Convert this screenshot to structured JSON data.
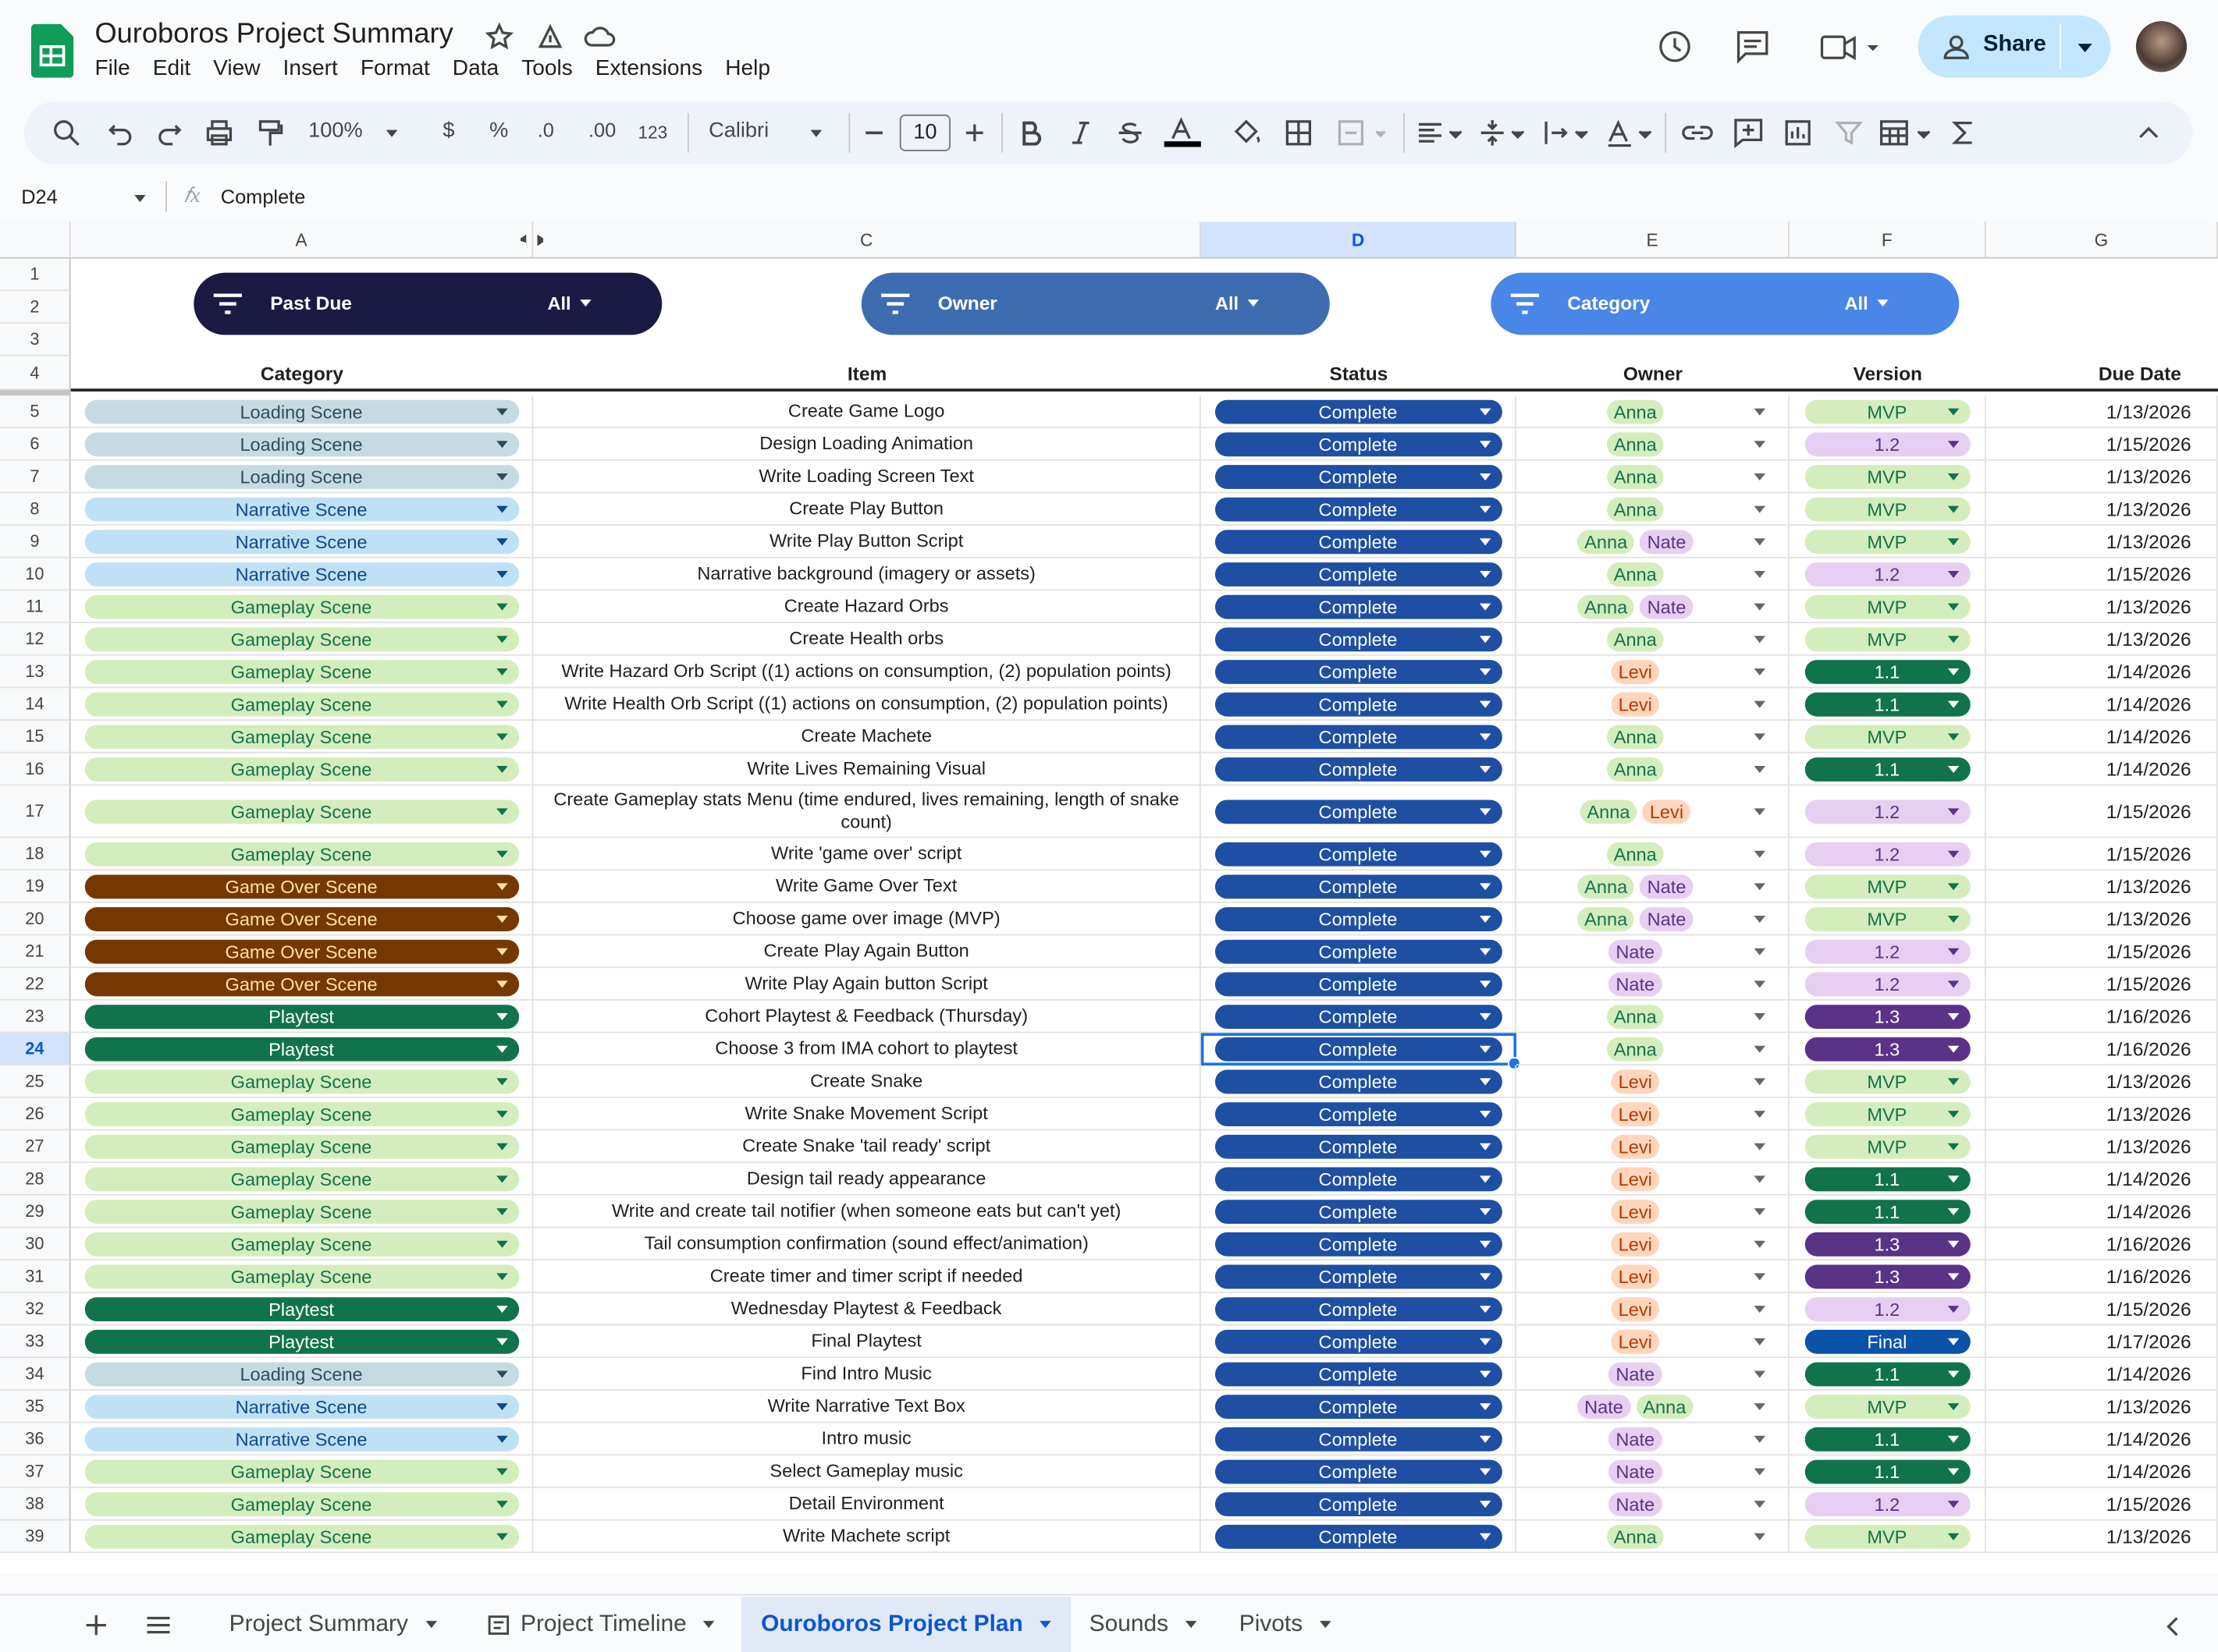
{
  "header": {
    "title": "Ouroboros Project Summary",
    "menu": [
      "File",
      "Edit",
      "View",
      "Insert",
      "Format",
      "Data",
      "Tools",
      "Extensions",
      "Help"
    ],
    "share": "Share"
  },
  "toolbar": {
    "zoom": "100%",
    "currency": "$",
    "percent": "%",
    "decrease_decimals": ".0",
    "increase_decimals": ".00",
    "number_format": "123",
    "font": "Calibri",
    "font_size": "10"
  },
  "formula_bar": {
    "cell": "D24",
    "content": "Complete"
  },
  "sheet": {
    "columns": [
      "A",
      "C",
      "D",
      "E",
      "F",
      "G"
    ],
    "top_rows": [
      1,
      2,
      3,
      4
    ],
    "filters": [
      {
        "label": "Past Due",
        "value": "All",
        "color": "#1b1a45"
      },
      {
        "label": "Owner",
        "value": "All",
        "color": "#3d6cb0"
      },
      {
        "label": "Category",
        "value": "All",
        "color": "#4a86e8"
      }
    ],
    "table_headers": [
      "Category",
      "Item",
      "Status",
      "Owner",
      "Version",
      "Due Date"
    ],
    "rows": [
      {
        "row": 5,
        "category": "Loading Scene",
        "item": "Create Game Logo",
        "status": "Complete",
        "owners": [
          "Anna"
        ],
        "version": "MVP",
        "due": "1/13/2026"
      },
      {
        "row": 6,
        "category": "Loading Scene",
        "item": "Design Loading Animation",
        "status": "Complete",
        "owners": [
          "Anna"
        ],
        "version": "1.2",
        "due": "1/15/2026"
      },
      {
        "row": 7,
        "category": "Loading Scene",
        "item": "Write Loading Screen Text",
        "status": "Complete",
        "owners": [
          "Anna"
        ],
        "version": "MVP",
        "due": "1/13/2026"
      },
      {
        "row": 8,
        "category": "Narrative Scene",
        "item": "Create Play Button",
        "status": "Complete",
        "owners": [
          "Anna"
        ],
        "version": "MVP",
        "due": "1/13/2026"
      },
      {
        "row": 9,
        "category": "Narrative Scene",
        "item": "Write Play Button Script",
        "status": "Complete",
        "owners": [
          "Anna",
          "Nate"
        ],
        "version": "MVP",
        "due": "1/13/2026"
      },
      {
        "row": 10,
        "category": "Narrative Scene",
        "item": "Narrative background (imagery or assets)",
        "status": "Complete",
        "owners": [
          "Anna"
        ],
        "version": "1.2",
        "due": "1/15/2026"
      },
      {
        "row": 11,
        "category": "Gameplay Scene",
        "item": "Create Hazard Orbs",
        "status": "Complete",
        "owners": [
          "Anna",
          "Nate"
        ],
        "version": "MVP",
        "due": "1/13/2026"
      },
      {
        "row": 12,
        "category": "Gameplay Scene",
        "item": "Create Health orbs",
        "status": "Complete",
        "owners": [
          "Anna"
        ],
        "version": "MVP",
        "due": "1/13/2026"
      },
      {
        "row": 13,
        "category": "Gameplay Scene",
        "item": "Write Hazard Orb Script ((1) actions on consumption, (2) population points)",
        "status": "Complete",
        "owners": [
          "Levi"
        ],
        "version": "1.1",
        "due": "1/14/2026"
      },
      {
        "row": 14,
        "category": "Gameplay Scene",
        "item": "Write Health Orb Script ((1) actions on consumption, (2) population points)",
        "status": "Complete",
        "owners": [
          "Levi"
        ],
        "version": "1.1",
        "due": "1/14/2026"
      },
      {
        "row": 15,
        "category": "Gameplay Scene",
        "item": "Create Machete",
        "status": "Complete",
        "owners": [
          "Anna"
        ],
        "version": "MVP",
        "due": "1/14/2026"
      },
      {
        "row": 16,
        "category": "Gameplay Scene",
        "item": "Write Lives Remaining Visual",
        "status": "Complete",
        "owners": [
          "Anna"
        ],
        "version": "1.1",
        "due": "1/14/2026"
      },
      {
        "row": 17,
        "category": "Gameplay Scene",
        "item": "Create Gameplay stats Menu (time endured, lives remaining, length of snake count)",
        "status": "Complete",
        "owners": [
          "Anna",
          "Levi"
        ],
        "version": "1.2",
        "due": "1/15/2026"
      },
      {
        "row": 18,
        "category": "Gameplay Scene",
        "item": "Write 'game over' script",
        "status": "Complete",
        "owners": [
          "Anna"
        ],
        "version": "1.2",
        "due": "1/15/2026"
      },
      {
        "row": 19,
        "category": "Game Over Scene",
        "item": "Write Game Over Text",
        "status": "Complete",
        "owners": [
          "Anna",
          "Nate"
        ],
        "version": "MVP",
        "due": "1/13/2026"
      },
      {
        "row": 20,
        "category": "Game Over Scene",
        "item": "Choose game over image (MVP)",
        "status": "Complete",
        "owners": [
          "Anna",
          "Nate"
        ],
        "version": "MVP",
        "due": "1/13/2026"
      },
      {
        "row": 21,
        "category": "Game Over Scene",
        "item": "Create Play Again Button",
        "status": "Complete",
        "owners": [
          "Nate"
        ],
        "version": "1.2",
        "due": "1/15/2026"
      },
      {
        "row": 22,
        "category": "Game Over Scene",
        "item": "Write Play Again button Script",
        "status": "Complete",
        "owners": [
          "Nate"
        ],
        "version": "1.2",
        "due": "1/15/2026"
      },
      {
        "row": 23,
        "category": "Playtest",
        "item": "Cohort Playtest & Feedback (Thursday)",
        "status": "Complete",
        "owners": [
          "Anna"
        ],
        "version": "1.3",
        "due": "1/16/2026"
      },
      {
        "row": 24,
        "category": "Playtest",
        "item": "Choose 3 from IMA cohort to playtest",
        "status": "Complete",
        "owners": [
          "Anna"
        ],
        "version": "1.3",
        "due": "1/16/2026"
      },
      {
        "row": 25,
        "category": "Gameplay Scene",
        "item": "Create Snake",
        "status": "Complete",
        "owners": [
          "Levi"
        ],
        "version": "MVP",
        "due": "1/13/2026"
      },
      {
        "row": 26,
        "category": "Gameplay Scene",
        "item": "Write Snake Movement Script",
        "status": "Complete",
        "owners": [
          "Levi"
        ],
        "version": "MVP",
        "due": "1/13/2026"
      },
      {
        "row": 27,
        "category": "Gameplay Scene",
        "item": "Create Snake 'tail ready' script",
        "status": "Complete",
        "owners": [
          "Levi"
        ],
        "version": "MVP",
        "due": "1/13/2026"
      },
      {
        "row": 28,
        "category": "Gameplay Scene",
        "item": "Design tail ready appearance",
        "status": "Complete",
        "owners": [
          "Levi"
        ],
        "version": "1.1",
        "due": "1/14/2026"
      },
      {
        "row": 29,
        "category": "Gameplay Scene",
        "item": "Write and create tail notifier (when someone eats but can't yet)",
        "status": "Complete",
        "owners": [
          "Levi"
        ],
        "version": "1.1",
        "due": "1/14/2026"
      },
      {
        "row": 30,
        "category": "Gameplay Scene",
        "item": "Tail consumption confirmation (sound effect/animation)",
        "status": "Complete",
        "owners": [
          "Levi"
        ],
        "version": "1.3",
        "due": "1/16/2026"
      },
      {
        "row": 31,
        "category": "Gameplay Scene",
        "item": "Create timer and timer script if needed",
        "status": "Complete",
        "owners": [
          "Levi"
        ],
        "version": "1.3",
        "due": "1/16/2026"
      },
      {
        "row": 32,
        "category": "Playtest",
        "item": "Wednesday Playtest & Feedback",
        "status": "Complete",
        "owners": [
          "Levi"
        ],
        "version": "1.2",
        "due": "1/15/2026"
      },
      {
        "row": 33,
        "category": "Playtest",
        "item": "Final Playtest",
        "status": "Complete",
        "owners": [
          "Levi"
        ],
        "version": "Final",
        "due": "1/17/2026"
      },
      {
        "row": 34,
        "category": "Loading Scene",
        "item": "Find Intro Music",
        "status": "Complete",
        "owners": [
          "Nate"
        ],
        "version": "1.1",
        "due": "1/14/2026"
      },
      {
        "row": 35,
        "category": "Narrative Scene",
        "item": "Write Narrative Text Box",
        "status": "Complete",
        "owners": [
          "Nate",
          "Anna"
        ],
        "version": "MVP",
        "due": "1/13/2026"
      },
      {
        "row": 36,
        "category": "Narrative Scene",
        "item": "Intro music",
        "status": "Complete",
        "owners": [
          "Nate"
        ],
        "version": "1.1",
        "due": "1/14/2026"
      },
      {
        "row": 37,
        "category": "Gameplay Scene",
        "item": "Select Gameplay music",
        "status": "Complete",
        "owners": [
          "Nate"
        ],
        "version": "1.1",
        "due": "1/14/2026"
      },
      {
        "row": 38,
        "category": "Gameplay Scene",
        "item": "Detail Environment",
        "status": "Complete",
        "owners": [
          "Nate"
        ],
        "version": "1.2",
        "due": "1/15/2026"
      },
      {
        "row": 39,
        "category": "Gameplay Scene",
        "item": "Write Machete script",
        "status": "Complete",
        "owners": [
          "Anna"
        ],
        "version": "MVP",
        "due": "1/13/2026"
      }
    ],
    "chip_colors": {
      "category": {
        "Loading Scene": [
          "#c6dbe1",
          "#2e4d5c"
        ],
        "Narrative Scene": [
          "#bfe1f6",
          "#0b4a8b"
        ],
        "Gameplay Scene": [
          "#d4edbc",
          "#11734b"
        ],
        "Game Over Scene": [
          "#753800",
          "#ffe5a0"
        ],
        "Playtest": [
          "#11734b",
          "#ffffff"
        ]
      },
      "owner": {
        "Anna": [
          "#d4edbc",
          "#11734b"
        ],
        "Nate": [
          "#e6cff2",
          "#5a3286"
        ],
        "Levi": [
          "#ffd5bc",
          "#b33c00"
        ]
      },
      "version": {
        "MVP": [
          "#d4edbc",
          "#11734b"
        ],
        "1.2": [
          "#e6cff2",
          "#5a3286"
        ],
        "1.1": [
          "#11734b",
          "#ffffff"
        ],
        "1.3": [
          "#5a3286",
          "#ffffff"
        ],
        "Final": [
          "#0a53a8",
          "#ffffff"
        ]
      },
      "status": [
        "#1e4fa3",
        "#ffffff"
      ]
    }
  },
  "tabs": {
    "names": [
      "Project Summary",
      "Project Timeline",
      "Ouroboros Project Plan",
      "Sounds",
      "Pivots"
    ],
    "active": "Ouroboros Project Plan"
  }
}
